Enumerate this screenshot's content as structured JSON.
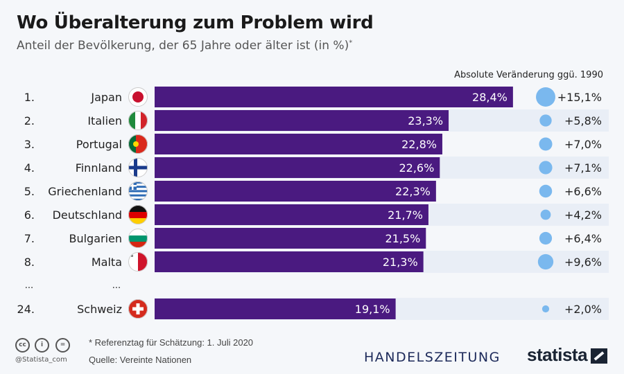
{
  "header": {
    "title": "Wo Überalterung zum Problem wird",
    "subtitle": "Anteil der Bevölkerung, der 65 Jahre oder älter ist (in %)",
    "subtitle_mark": "*"
  },
  "chart_data": {
    "type": "bar",
    "orientation": "horizontal",
    "title": "Wo Überalterung zum Problem wird",
    "subtitle": "Anteil der Bevölkerung, der 65 Jahre oder älter ist (in %)*",
    "change_header": "Absolute Veränderung ggü. 1990",
    "ranks": [
      "1.",
      "2.",
      "3.",
      "4.",
      "5.",
      "6.",
      "7.",
      "8.",
      "24."
    ],
    "categories": [
      "Japan",
      "Italien",
      "Portugal",
      "Finnland",
      "Griechenland",
      "Deutschland",
      "Bulgarien",
      "Malta",
      "Schweiz"
    ],
    "flags": [
      "japan-flag",
      "italy-flag",
      "portugal-flag",
      "finland-flag",
      "greece-flag",
      "germany-flag",
      "bulgaria-flag",
      "malta-flag",
      "switzerland-flag"
    ],
    "values": [
      28.4,
      23.3,
      22.8,
      22.6,
      22.3,
      21.7,
      21.5,
      21.3,
      19.1
    ],
    "value_labels": [
      "28,4%",
      "23,3%",
      "22,8%",
      "22,6%",
      "22,3%",
      "21,7%",
      "21,5%",
      "21,3%",
      "19,1%"
    ],
    "change_values": [
      15.1,
      5.8,
      7.0,
      7.1,
      6.6,
      4.2,
      6.4,
      9.6,
      2.0
    ],
    "change_labels": [
      "+15,1%",
      "+5,8%",
      "+7,0%",
      "+7,1%",
      "+6,6%",
      "+4,2%",
      "+6,4%",
      "+9,6%",
      "+2,0%"
    ],
    "ellipsis": "...",
    "colors": {
      "bar": "#4a1a80",
      "bubble": "#7ab8ee",
      "stripe": "#e9eef6"
    }
  },
  "footer": {
    "note": "* Referenztag für Schätzung: 1. Juli 2020",
    "source": "Quelle: Vereinte Nationen",
    "handle": "@Statista_com",
    "cc_icons": [
      "cc",
      "i",
      "="
    ],
    "partner": "HANDELSZEITUNG",
    "brand": "statista"
  }
}
